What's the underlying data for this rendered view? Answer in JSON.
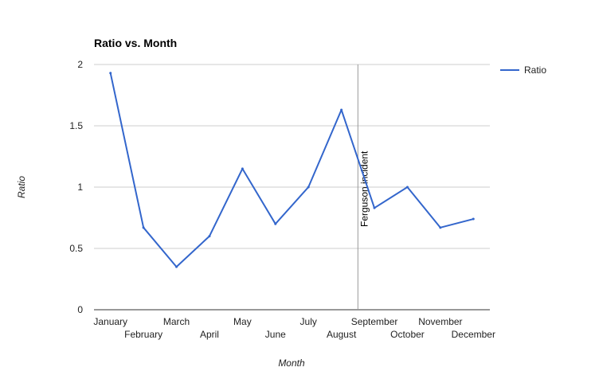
{
  "chart_data": {
    "type": "line",
    "title": "Ratio vs. Month",
    "xlabel": "Month",
    "ylabel": "Ratio",
    "categories": [
      "January",
      "February",
      "March",
      "April",
      "May",
      "June",
      "July",
      "August",
      "September",
      "October",
      "November",
      "December"
    ],
    "series": [
      {
        "name": "Ratio",
        "color": "#3366cc",
        "values": [
          1.93,
          0.67,
          0.35,
          0.6,
          1.15,
          0.7,
          1.0,
          1.63,
          0.83,
          1.0,
          0.67,
          0.74
        ]
      }
    ],
    "ylim": [
      0,
      2
    ],
    "yticks": [
      "0",
      "0.5",
      "1",
      "1.5",
      "2"
    ],
    "grid": true,
    "legend": "right",
    "annotation": {
      "label": "Ferguson incident",
      "x_position": 7.5
    }
  }
}
